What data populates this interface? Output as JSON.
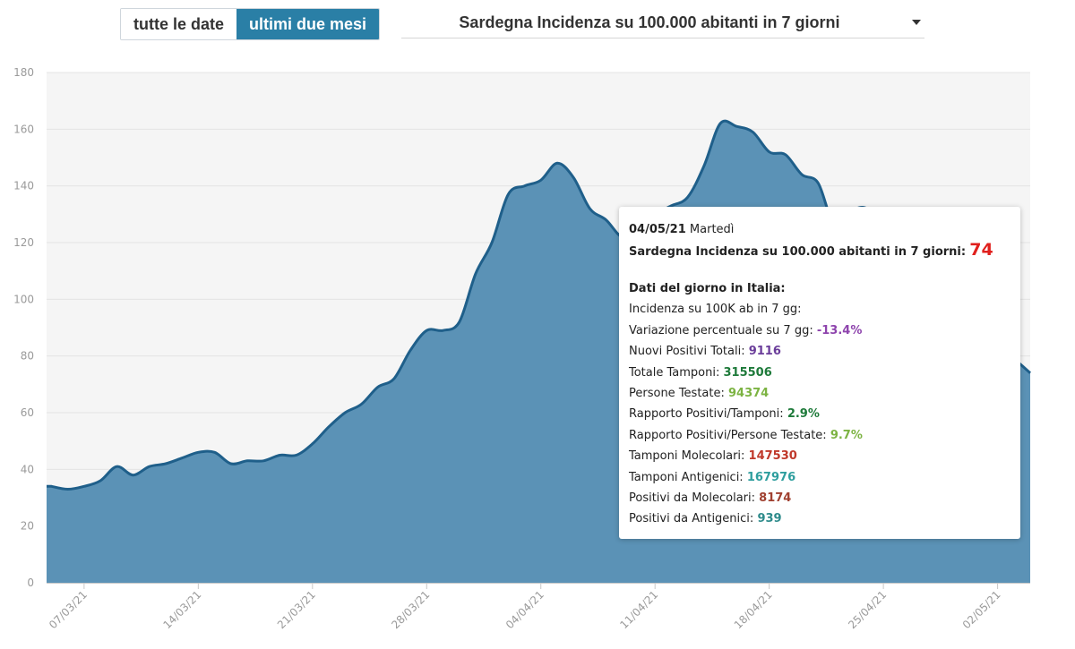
{
  "controls": {
    "buttons": [
      {
        "label": "tutte le date",
        "active": false
      },
      {
        "label": "ultimi due mesi",
        "active": true
      }
    ],
    "select": {
      "value": "Sardegna Incidenza su 100.000 abitanti in 7 giorni"
    }
  },
  "chart_data": {
    "type": "area",
    "ylim": [
      0,
      180
    ],
    "yticks": [
      0,
      20,
      40,
      60,
      80,
      100,
      120,
      140,
      160,
      180
    ],
    "xticks": [
      "07/03/21",
      "14/03/21",
      "21/03/21",
      "28/03/21",
      "04/04/21",
      "11/04/21",
      "18/04/21",
      "25/04/21",
      "02/05/21"
    ],
    "grid": true,
    "colors": {
      "fill": "#5b92b6",
      "line": "#1f5f8a",
      "plot_bg": "#f5f5f5",
      "grid": "#e4e4e4"
    },
    "x": [
      "05/03/21",
      "06/03/21",
      "07/03/21",
      "08/03/21",
      "09/03/21",
      "10/03/21",
      "11/03/21",
      "12/03/21",
      "13/03/21",
      "14/03/21",
      "15/03/21",
      "16/03/21",
      "17/03/21",
      "18/03/21",
      "19/03/21",
      "20/03/21",
      "21/03/21",
      "22/03/21",
      "23/03/21",
      "24/03/21",
      "25/03/21",
      "26/03/21",
      "27/03/21",
      "28/03/21",
      "29/03/21",
      "30/03/21",
      "31/03/21",
      "01/04/21",
      "02/04/21",
      "03/04/21",
      "04/04/21",
      "05/04/21",
      "06/04/21",
      "07/04/21",
      "08/04/21",
      "09/04/21",
      "10/04/21",
      "11/04/21",
      "12/04/21",
      "13/04/21",
      "14/04/21",
      "15/04/21",
      "16/04/21",
      "17/04/21",
      "18/04/21",
      "19/04/21",
      "20/04/21",
      "21/04/21",
      "22/04/21",
      "23/04/21",
      "24/04/21",
      "25/04/21",
      "26/04/21",
      "27/04/21",
      "28/04/21",
      "29/04/21",
      "30/04/21",
      "01/05/21",
      "02/05/21",
      "03/05/21",
      "04/05/21"
    ],
    "series": [
      {
        "values": [
          34,
          33,
          34,
          36,
          41,
          38,
          41,
          42,
          44,
          46,
          46,
          42,
          43,
          43,
          45,
          45,
          49,
          55,
          60,
          63,
          69,
          72,
          82,
          89,
          89,
          92,
          109,
          120,
          137,
          140,
          142,
          148,
          143,
          132,
          128,
          122,
          125,
          130,
          133,
          136,
          147,
          162,
          161,
          159,
          152,
          151,
          144,
          141,
          126,
          131,
          132,
          124,
          114,
          105,
          97,
          90,
          84,
          86,
          83,
          79,
          74
        ]
      }
    ]
  },
  "tooltip": {
    "date": "04/05/21",
    "weekday": "Martedì",
    "series_label": "Sardegna Incidenza su 100.000 abitanti in 7 giorni:",
    "series_value": "74",
    "italy_heading": "Dati del giorno in Italia:",
    "rows": [
      {
        "label": "Incidenza su 100K ab in 7 gg:",
        "value": "",
        "color": "#222222"
      },
      {
        "label": "Variazione percentuale su 7 gg:",
        "value": "-13.4%",
        "color": "#8e44ad"
      },
      {
        "label": "Nuovi Positivi Totali:",
        "value": "9116",
        "color": "#6a3d9a"
      },
      {
        "label": "Totale Tamponi:",
        "value": "315506",
        "color": "#1e7a3a"
      },
      {
        "label": "Persone Testate:",
        "value": "94374",
        "color": "#7cb342"
      },
      {
        "label": "Rapporto Positivi/Tamponi:",
        "value": "2.9%",
        "color": "#1e7a3a"
      },
      {
        "label": "Rapporto Positivi/Persone Testate:",
        "value": "9.7%",
        "color": "#7cb342"
      },
      {
        "label": "Tamponi Molecolari:",
        "value": "147530",
        "color": "#c0392b"
      },
      {
        "label": "Tamponi Antigenici:",
        "value": "167976",
        "color": "#2e9e9e"
      },
      {
        "label": "Positivi da Molecolari:",
        "value": "8174",
        "color": "#a04030"
      },
      {
        "label": "Positivi da Antigenici:",
        "value": "939",
        "color": "#2e8b8b"
      }
    ]
  }
}
